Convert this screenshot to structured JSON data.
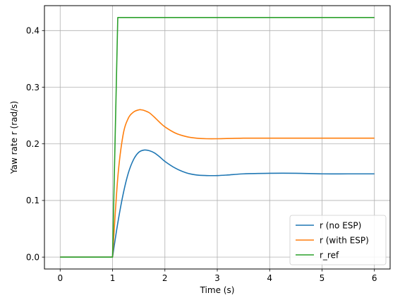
{
  "chart_data": {
    "type": "line",
    "title": "",
    "xlabel": "Time (s)",
    "ylabel": "Yaw rate r (rad/s)",
    "xlim": [
      -0.3,
      6.3
    ],
    "ylim": [
      -0.021,
      0.444
    ],
    "xticks": [
      0,
      1,
      2,
      3,
      4,
      5,
      6
    ],
    "xtick_labels": [
      "0",
      "1",
      "2",
      "3",
      "4",
      "5",
      "6"
    ],
    "yticks": [
      0.0,
      0.1,
      0.2,
      0.3,
      0.4
    ],
    "ytick_labels": [
      "0.0",
      "0.1",
      "0.2",
      "0.3",
      "0.4"
    ],
    "grid": true,
    "legend_position": "lower-right",
    "series": [
      {
        "name": "r (no ESP)",
        "color": "#1f77b4",
        "x": [
          0,
          1.0,
          1.1,
          1.2,
          1.3,
          1.4,
          1.5,
          1.6,
          1.7,
          1.8,
          1.9,
          2.0,
          2.2,
          2.4,
          2.6,
          2.8,
          3.0,
          3.2,
          3.5,
          4.0,
          4.5,
          5.0,
          5.5,
          6.0
        ],
        "y": [
          0,
          0,
          0.06,
          0.11,
          0.148,
          0.172,
          0.185,
          0.189,
          0.188,
          0.184,
          0.177,
          0.169,
          0.157,
          0.149,
          0.145,
          0.144,
          0.144,
          0.145,
          0.147,
          0.148,
          0.148,
          0.147,
          0.147,
          0.147
        ]
      },
      {
        "name": "r (with ESP)",
        "color": "#ff7f0e",
        "x": [
          0,
          1.0,
          1.1,
          1.2,
          1.3,
          1.4,
          1.5,
          1.55,
          1.6,
          1.7,
          1.8,
          1.9,
          2.0,
          2.2,
          2.4,
          2.6,
          2.8,
          3.0,
          3.5,
          4.0,
          5.0,
          6.0
        ],
        "y": [
          0,
          0,
          0.14,
          0.215,
          0.245,
          0.256,
          0.26,
          0.26,
          0.259,
          0.255,
          0.247,
          0.238,
          0.23,
          0.219,
          0.213,
          0.21,
          0.209,
          0.209,
          0.21,
          0.21,
          0.21,
          0.21
        ]
      },
      {
        "name": "r_ref",
        "color": "#2ca02c",
        "x": [
          0,
          1.0,
          1.1,
          6.0
        ],
        "y": [
          0,
          0,
          0.423,
          0.423
        ]
      }
    ]
  }
}
